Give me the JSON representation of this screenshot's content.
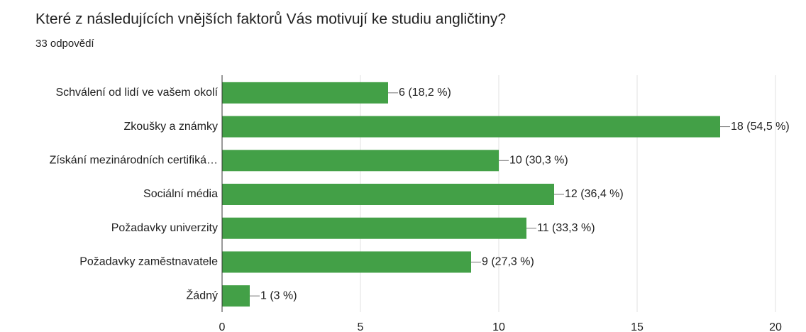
{
  "chart_data": {
    "type": "bar",
    "orientation": "horizontal",
    "title": "Které z následujících vnějších faktorů Vás motivují ke studiu angličtiny?",
    "subtitle": "33 odpovědí",
    "categories": [
      "Schválení od lidí ve vašem okolí",
      "Zkoušky a známky",
      "Získání mezinárodních certifiká…",
      "Sociální média",
      "Požadavky univerzity",
      "Požadavky zaměstnavatele",
      "Žádný"
    ],
    "values": [
      6,
      18,
      10,
      12,
      11,
      9,
      1
    ],
    "value_labels": [
      "6 (18,2 %)",
      "18 (54,5 %)",
      "10 (30,3 %)",
      "12 (36,4 %)",
      "11 (33,3 %)",
      "9 (27,3 %)",
      "1 (3 %)"
    ],
    "color": "#43a047",
    "xlim": [
      0,
      20
    ],
    "xticks": [
      0,
      5,
      10,
      15,
      20
    ],
    "grid": true
  }
}
